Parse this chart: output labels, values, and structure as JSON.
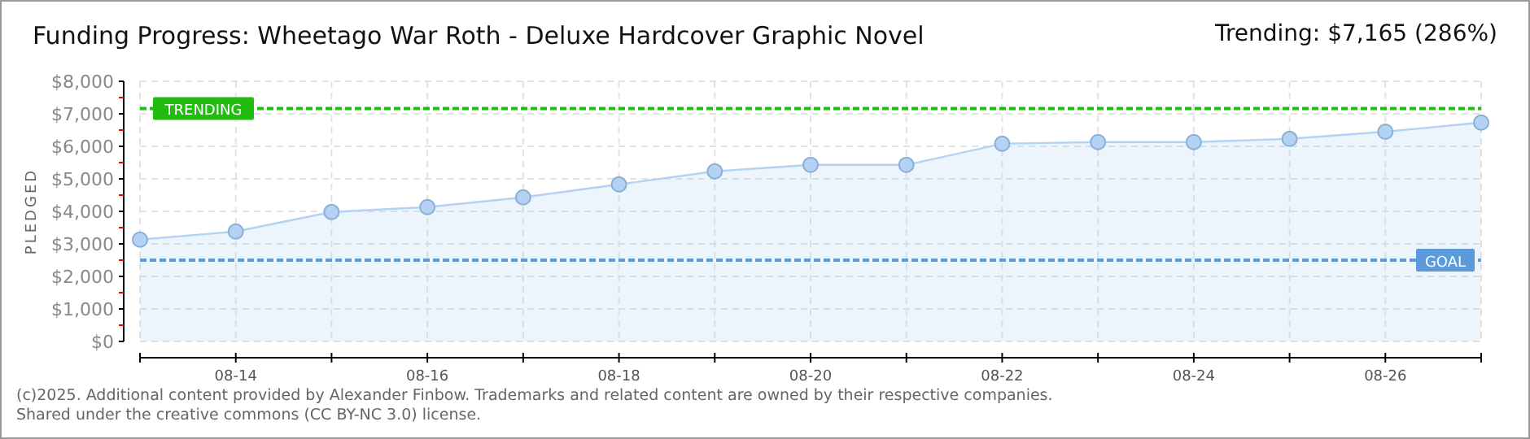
{
  "chart_data": {
    "type": "area",
    "title": "Funding Progress: Wheetago War Roth - Deluxe Hardcover Graphic Novel",
    "subtitle": "Trending: $7,165 (286%)",
    "ylabel": "PLEDGED",
    "annotations": [
      "(c)2025. Additional content provided by Alexander Finbow. Trademarks and related content are owned by their respective companies.",
      "Shared under the creative commons (CC BY-NC 3.0) license."
    ],
    "categories": [
      null,
      "08-14",
      null,
      "08-16",
      null,
      "08-18",
      null,
      "08-20",
      null,
      "08-22",
      null,
      "08-24",
      null,
      "08-26",
      null
    ],
    "series": [
      {
        "color": "#b4d2f3",
        "values": [
          3130,
          3380,
          3980,
          4130,
          4430,
          4830,
          5230,
          5430,
          5430,
          6080,
          6130,
          6130,
          6230,
          6450,
          6730
        ]
      }
    ],
    "ylim": [
      0,
      8000
    ],
    "yticks": [
      {
        "value": 0,
        "label": "$0"
      },
      {
        "value": 500,
        "label": null
      },
      {
        "value": 1000,
        "label": "$1,000"
      },
      {
        "value": 1500,
        "label": null
      },
      {
        "value": 2000,
        "label": "$2,000"
      },
      {
        "value": 2500,
        "label": null
      },
      {
        "value": 3000,
        "label": "$3,000"
      },
      {
        "value": 3500,
        "label": null
      },
      {
        "value": 4000,
        "label": "$4,000"
      },
      {
        "value": 4500,
        "label": null
      },
      {
        "value": 5000,
        "label": "$5,000"
      },
      {
        "value": 5500,
        "label": null
      },
      {
        "value": 6000,
        "label": "$6,000"
      },
      {
        "value": 6500,
        "label": null
      },
      {
        "value": 7000,
        "label": "$7,000"
      },
      {
        "value": 7500,
        "label": null
      },
      {
        "value": 8000,
        "label": "$8,000"
      }
    ],
    "ref_lines": [
      {
        "axis": "y",
        "value": 7165,
        "label": "TRENDING",
        "color": "#22bb11",
        "line_style": "dashed"
      },
      {
        "axis": "y",
        "value": 2500,
        "label": "GOAL",
        "color": "#5b9bdc",
        "line_style": "dashed"
      }
    ],
    "grid": true,
    "marker": "circle"
  }
}
